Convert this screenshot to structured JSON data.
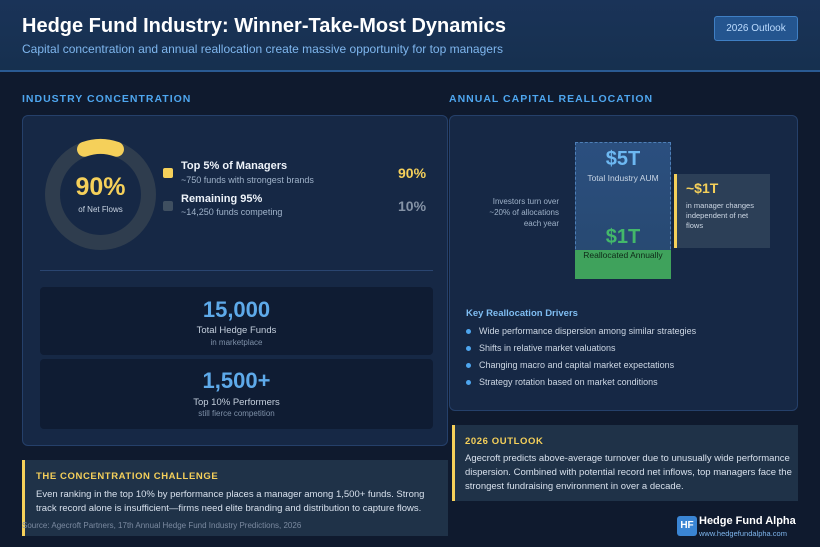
{
  "header": {
    "title": "Hedge Fund Industry: Winner-Take-Most Dynamics",
    "subtitle": "Capital concentration and annual reallocation create massive opportunity for top managers",
    "badge": "2026 Outlook"
  },
  "concentration": {
    "section_label": "INDUSTRY CONCENTRATION",
    "donut": {
      "value": "90%",
      "label": "of Net Flows",
      "share": 0.9,
      "highlight_color": "#f5d05a",
      "track_color": "#2f3d4e"
    },
    "legend": [
      {
        "title": "Top 5% of Managers",
        "desc": "~750 funds with strongest brands",
        "pct": "90%",
        "color": "#f5d05a"
      },
      {
        "title": "Remaining 95%",
        "desc": "~14,250 funds competing",
        "pct": "10%",
        "color": "#3f4f60"
      }
    ],
    "stats": [
      {
        "value": "15,000",
        "label": "Total Hedge Funds",
        "sub": "in marketplace"
      },
      {
        "value": "1,500+",
        "label": "Top 10% Performers",
        "sub": "still fierce competition"
      }
    ]
  },
  "challenge": {
    "heading": "THE CONCENTRATION CHALLENGE",
    "body": "Even ranking in the top 10% by performance places a manager among 1,500+ funds. Strong track record alone is insufficient—firms need elite branding and distribution to capture flows."
  },
  "reallocation": {
    "section_label": "ANNUAL CAPITAL REALLOCATION",
    "total": {
      "value": "$5T",
      "label": "Total Industry AUM"
    },
    "annual": {
      "value": "$1T",
      "label": "Reallocated Annually",
      "share": 0.2
    },
    "turnover_note": "Investors turn over ~20% of allocations each year",
    "independent": {
      "value": "~$1T",
      "desc": "in manager changes independent of net flows"
    },
    "drivers_heading": "Key Reallocation Drivers",
    "drivers": [
      "Wide performance dispersion among similar strategies",
      "Shifts in relative market valuations",
      "Changing macro and capital market expectations",
      "Strategy rotation based on market conditions"
    ]
  },
  "outlook": {
    "heading": "2026 OUTLOOK",
    "body": "Agecroft predicts above-average turnover due to unusually wide performance dispersion. Combined with potential record net inflows, top managers face the strongest fundraising environment in over a decade."
  },
  "footer": {
    "source": "Source: Agecroft Partners, 17th Annual Hedge Fund Industry Predictions, 2026",
    "brand_logo": "HF",
    "brand_name": "Hedge Fund Alpha",
    "brand_url": "www.hedgefundalpha.com"
  }
}
